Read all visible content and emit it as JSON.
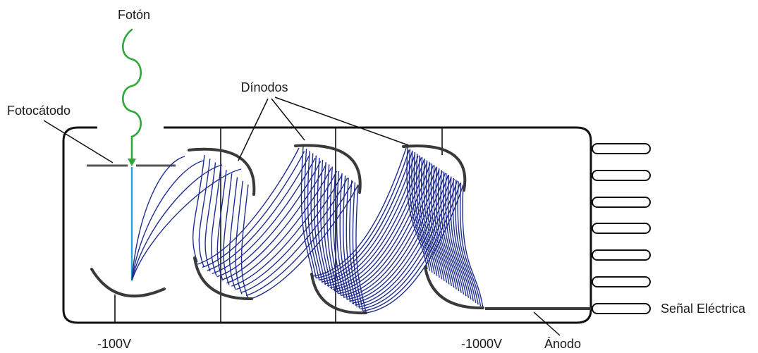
{
  "diagram": {
    "labels": {
      "photon": "Fotón",
      "photocathode": "Fotocátodo",
      "dynodes": "Dínodos",
      "signal": "Señal Eléctrica",
      "anode": "Ánodo",
      "voltage_low": "-100V",
      "voltage_high": "-1000V"
    },
    "colors": {
      "photon": "#2fa83a",
      "electron_beam": "#29a3e0",
      "electron_traces": "#1f2d8f",
      "dynode": "#3a3a3a",
      "tube_outline": "#111111"
    }
  }
}
